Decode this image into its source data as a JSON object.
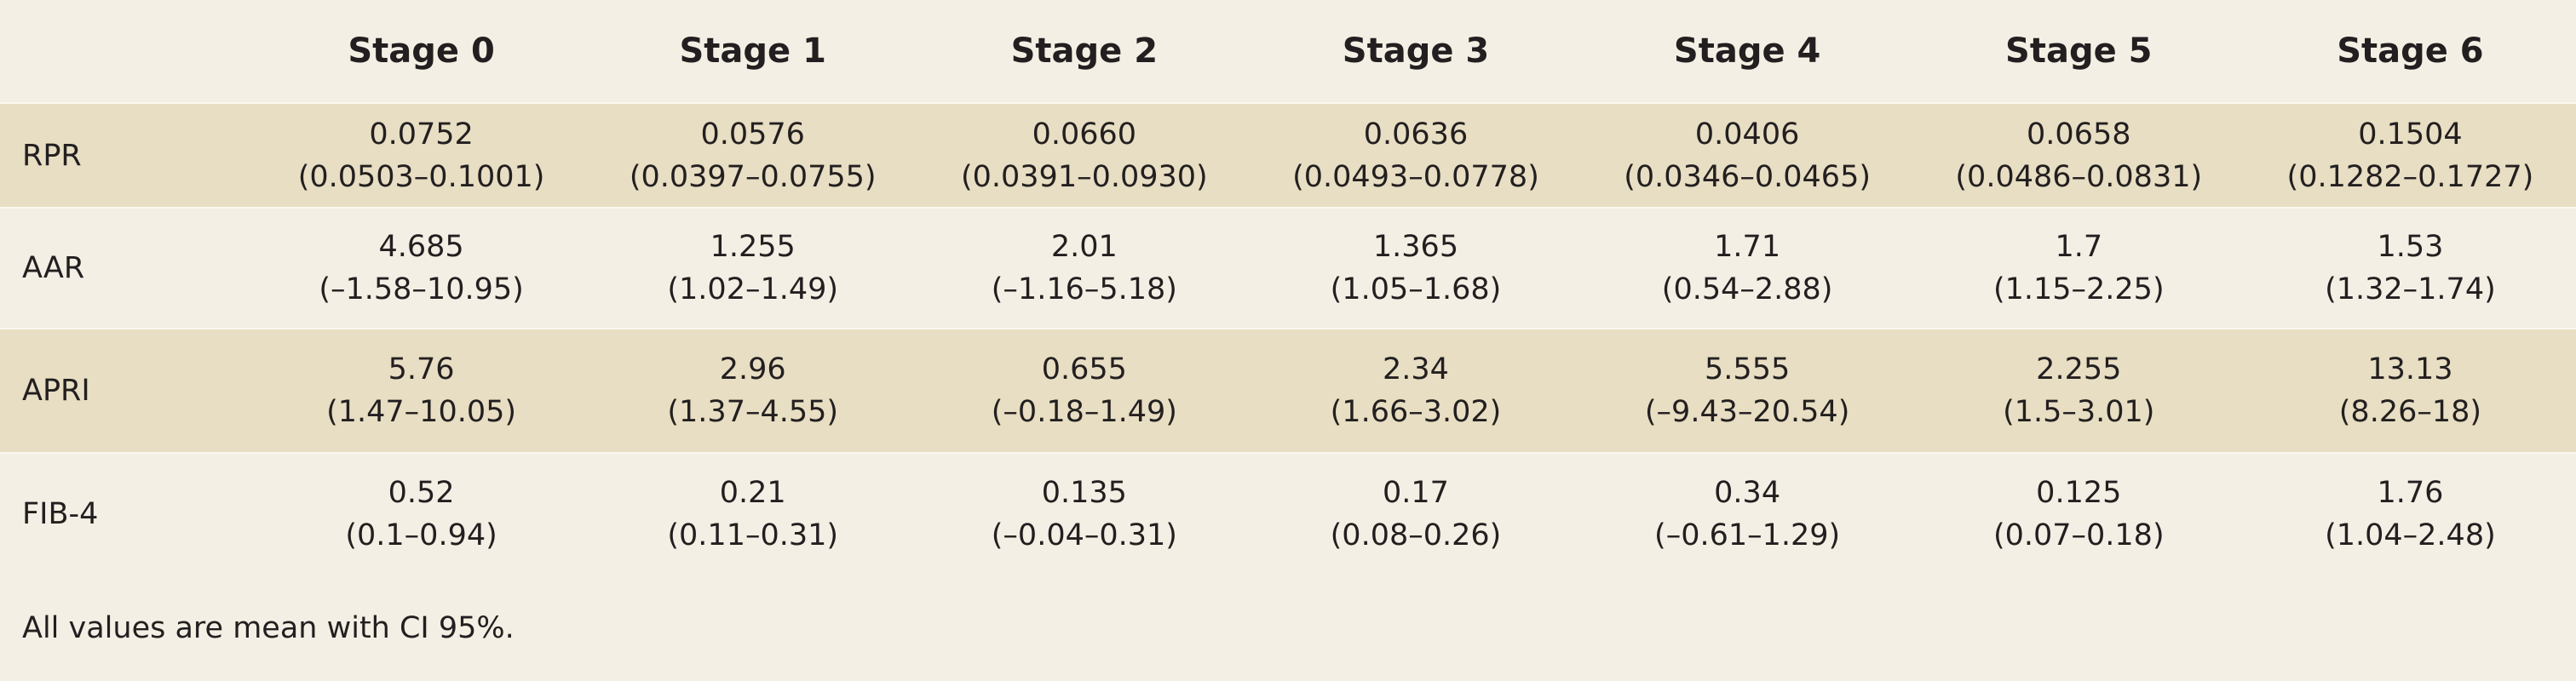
{
  "header": {
    "columns": [
      "Stage 0",
      "Stage 1",
      "Stage 2",
      "Stage 3",
      "Stage 4",
      "Stage 5",
      "Stage 6"
    ]
  },
  "table": {
    "rows": [
      {
        "label": "RPR",
        "cells": [
          {
            "mean": "0.0752",
            "ci": "(0.0503–0.1001)"
          },
          {
            "mean": "0.0576",
            "ci": "(0.0397–0.0755)"
          },
          {
            "mean": "0.0660",
            "ci": "(0.0391–0.0930)"
          },
          {
            "mean": "0.0636",
            "ci": "(0.0493–0.0778)"
          },
          {
            "mean": "0.0406",
            "ci": "(0.0346–0.0465)"
          },
          {
            "mean": "0.0658",
            "ci": "(0.0486–0.0831)"
          },
          {
            "mean": "0.1504",
            "ci": "(0.1282–0.1727)"
          }
        ]
      },
      {
        "label": "AAR",
        "cells": [
          {
            "mean": "4.685",
            "ci": "(–1.58–10.95)"
          },
          {
            "mean": "1.255",
            "ci": "(1.02–1.49)"
          },
          {
            "mean": "2.01",
            "ci": "(–1.16–5.18)"
          },
          {
            "mean": "1.365",
            "ci": "(1.05–1.68)"
          },
          {
            "mean": "1.71",
            "ci": "(0.54–2.88)"
          },
          {
            "mean": "1.7",
            "ci": "(1.15–2.25)"
          },
          {
            "mean": "1.53",
            "ci": "(1.32–1.74)"
          }
        ]
      },
      {
        "label": "APRI",
        "cells": [
          {
            "mean": "5.76",
            "ci": "(1.47–10.05)"
          },
          {
            "mean": "2.96",
            "ci": "(1.37–4.55)"
          },
          {
            "mean": "0.655",
            "ci": "(–0.18–1.49)"
          },
          {
            "mean": "2.34",
            "ci": "(1.66–3.02)"
          },
          {
            "mean": "5.555",
            "ci": "(–9.43–20.54)"
          },
          {
            "mean": "2.255",
            "ci": "(1.5–3.01)"
          },
          {
            "mean": "13.13",
            "ci": "(8.26–18)"
          }
        ]
      },
      {
        "label": "FIB-4",
        "cells": [
          {
            "mean": "0.52",
            "ci": "(0.1–0.94)"
          },
          {
            "mean": "0.21",
            "ci": "(0.11–0.31)"
          },
          {
            "mean": "0.135",
            "ci": "(–0.04–0.31)"
          },
          {
            "mean": "0.17",
            "ci": "(0.08–0.26)"
          },
          {
            "mean": "0.34",
            "ci": "(–0.61–1.29)"
          },
          {
            "mean": "0.125",
            "ci": "(0.07–0.18)"
          },
          {
            "mean": "1.76",
            "ci": "(1.04–2.48)"
          }
        ]
      }
    ]
  },
  "note": "All values are mean with CI 95%."
}
